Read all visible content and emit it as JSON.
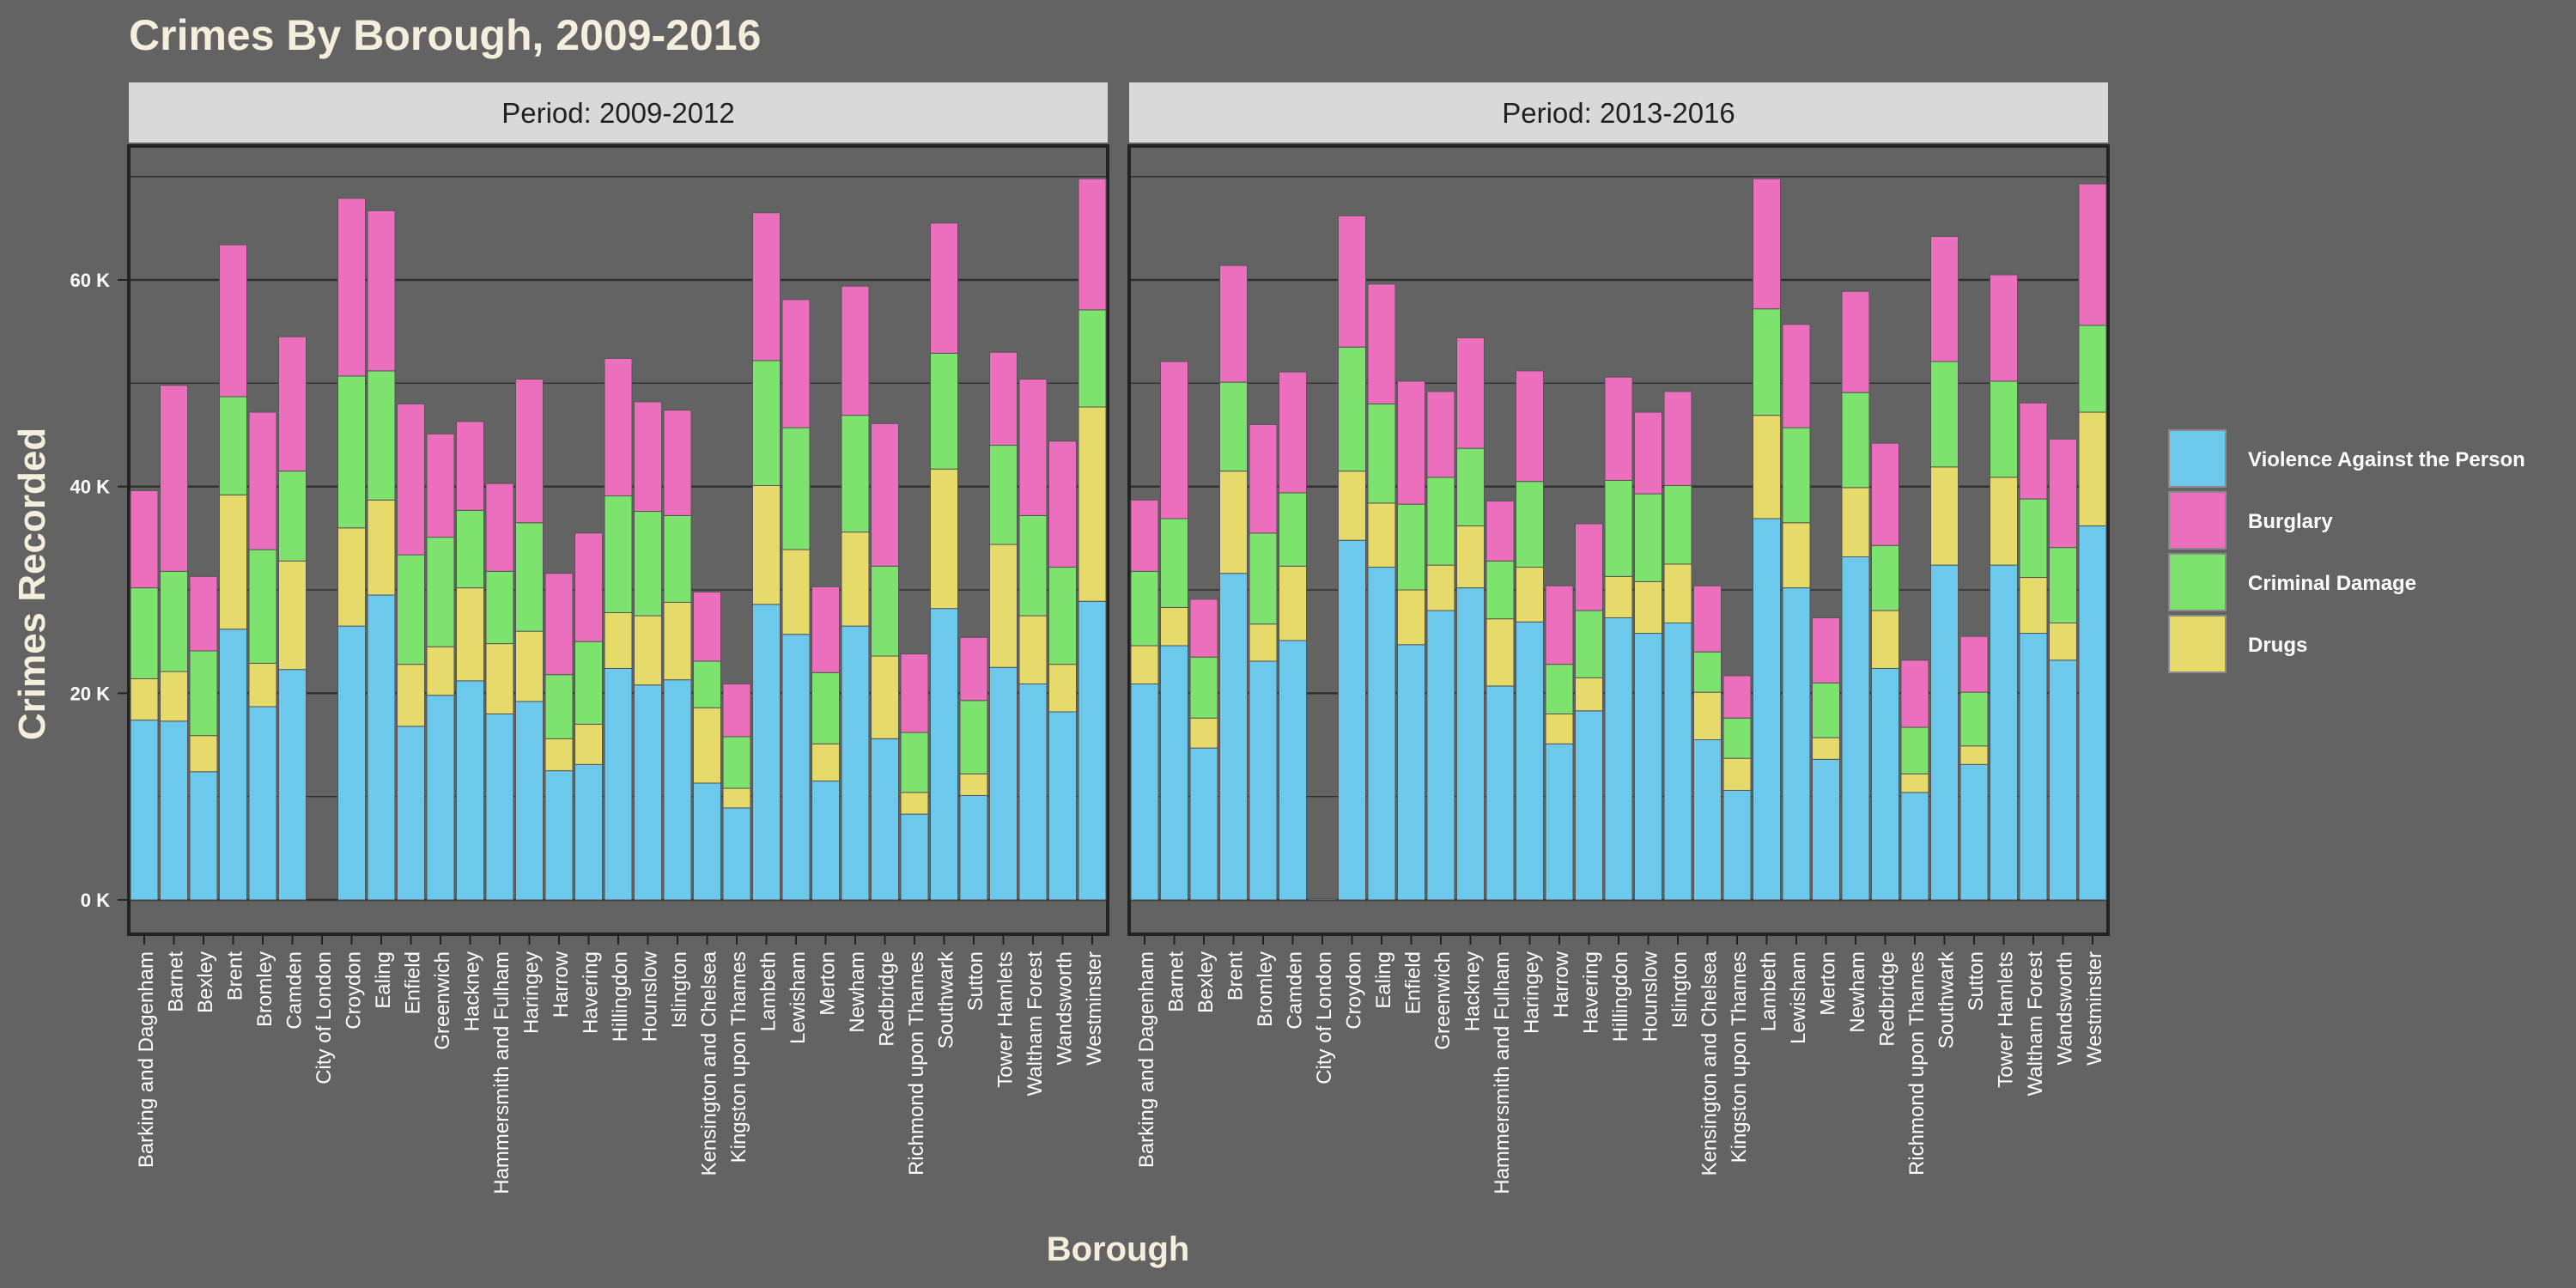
{
  "chart_data": {
    "type": "bar",
    "stacked": true,
    "title": "Crimes By Borough, 2009-2016",
    "xlabel": "Borough",
    "ylabel": "Crimes Recorded",
    "ylim": [
      0,
      72000
    ],
    "yticks": [
      0,
      20000,
      40000,
      60000
    ],
    "ytick_labels": [
      "0 K",
      "20 K",
      "40 K",
      "60 K"
    ],
    "grid": true,
    "legend_position": "right",
    "categories": [
      "Barking and Dagenham",
      "Barnet",
      "Bexley",
      "Brent",
      "Bromley",
      "Camden",
      "City of London",
      "Croydon",
      "Ealing",
      "Enfield",
      "Greenwich",
      "Hackney",
      "Hammersmith and Fulham",
      "Haringey",
      "Harrow",
      "Havering",
      "Hillingdon",
      "Hounslow",
      "Islington",
      "Kensington and Chelsea",
      "Kingston upon Thames",
      "Lambeth",
      "Lewisham",
      "Merton",
      "Newham",
      "Redbridge",
      "Richmond upon Thames",
      "Southwark",
      "Sutton",
      "Tower Hamlets",
      "Waltham Forest",
      "Wandsworth",
      "Westminster"
    ],
    "series_order": [
      "Violence Against the Person",
      "Drugs",
      "Criminal Damage",
      "Burglary"
    ],
    "legend": [
      {
        "name": "Violence Against the Person",
        "color": "#6cc9ec"
      },
      {
        "name": "Burglary",
        "color": "#ec6fbd"
      },
      {
        "name": "Criminal Damage",
        "color": "#7de36e"
      },
      {
        "name": "Drugs",
        "color": "#e6da6a"
      }
    ],
    "panels": [
      {
        "label": "Period: 2009-2012",
        "series": [
          {
            "name": "Violence Against the Person",
            "values": [
              17400,
              17300,
              12400,
              26200,
              18700,
              22300,
              0,
              26500,
              29500,
              16800,
              19800,
              21200,
              18000,
              19200,
              12500,
              13100,
              22400,
              20800,
              21300,
              11300,
              8900,
              28600,
              25700,
              11500,
              26500,
              15600,
              8300,
              28200,
              10100,
              22500,
              20900,
              18200,
              28900
            ]
          },
          {
            "name": "Drugs",
            "values": [
              4000,
              4800,
              3500,
              13000,
              4200,
              10500,
              0,
              9500,
              9200,
              6000,
              4700,
              9000,
              6800,
              6800,
              3100,
              3900,
              5400,
              6700,
              7500,
              7300,
              1900,
              11500,
              8200,
              3600,
              9100,
              8000,
              2100,
              13500,
              2100,
              11900,
              6600,
              4600,
              18800
            ]
          },
          {
            "name": "Criminal Damage",
            "values": [
              8800,
              9700,
              8200,
              9500,
              11000,
              8700,
              0,
              14700,
              12500,
              10600,
              10600,
              7500,
              7000,
              10500,
              6200,
              8000,
              11300,
              10100,
              8400,
              4500,
              5000,
              12100,
              11800,
              6900,
              11300,
              8700,
              5800,
              11200,
              7100,
              9600,
              9700,
              9400,
              9400
            ]
          },
          {
            "name": "Burglary",
            "values": [
              9400,
              18000,
              7200,
              14700,
              13300,
              13000,
              0,
              17200,
              15500,
              14600,
              10000,
              8600,
              8500,
              13900,
              9800,
              10500,
              13300,
              10600,
              10200,
              6700,
              5100,
              14300,
              12400,
              8300,
              12500,
              13800,
              7600,
              12600,
              6100,
              9000,
              13200,
              12200,
              12700
            ]
          }
        ]
      },
      {
        "label": "Period: 2013-2016",
        "series": [
          {
            "name": "Violence Against the Person",
            "values": [
              20900,
              24600,
              14700,
              31600,
              23100,
              25100,
              100,
              34800,
              32200,
              24700,
              28000,
              30200,
              20700,
              26900,
              15100,
              18300,
              27300,
              25800,
              26800,
              15500,
              10600,
              36900,
              30200,
              13600,
              33200,
              22400,
              10400,
              32400,
              13100,
              32400,
              25800,
              23200,
              36200
            ]
          },
          {
            "name": "Drugs",
            "values": [
              3700,
              3700,
              2900,
              9900,
              3600,
              7200,
              0,
              6700,
              6200,
              5300,
              4400,
              6000,
              6500,
              5300,
              2900,
              3200,
              4000,
              5000,
              5700,
              4600,
              3100,
              10000,
              6300,
              2100,
              6700,
              5600,
              1800,
              9500,
              1800,
              8500,
              5400,
              3600,
              11000
            ]
          },
          {
            "name": "Criminal Damage",
            "values": [
              7200,
              8600,
              5900,
              8600,
              8800,
              7100,
              0,
              12000,
              9600,
              8300,
              8500,
              7500,
              5600,
              8300,
              4800,
              6500,
              9300,
              8500,
              7600,
              3900,
              3900,
              10300,
              9200,
              5300,
              9200,
              6300,
              4500,
              10200,
              5200,
              9300,
              7600,
              7300,
              8400
            ]
          },
          {
            "name": "Burglary",
            "values": [
              6900,
              15200,
              5600,
              11300,
              10500,
              11700,
              0,
              12700,
              11600,
              11900,
              8300,
              10700,
              5800,
              10700,
              7600,
              8400,
              10000,
              7900,
              9100,
              6400,
              4100,
              12600,
              10000,
              6300,
              9800,
              9900,
              6500,
              12100,
              5400,
              10300,
              9300,
              10500,
              13700
            ]
          }
        ]
      }
    ]
  }
}
